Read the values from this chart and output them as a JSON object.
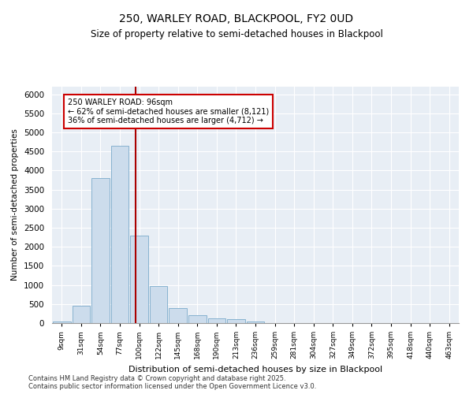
{
  "title1": "250, WARLEY ROAD, BLACKPOOL, FY2 0UD",
  "title2": "Size of property relative to semi-detached houses in Blackpool",
  "xlabel": "Distribution of semi-detached houses by size in Blackpool",
  "ylabel": "Number of semi-detached properties",
  "footer1": "Contains HM Land Registry data © Crown copyright and database right 2025.",
  "footer2": "Contains public sector information licensed under the Open Government Licence v3.0.",
  "annotation_title": "250 WARLEY ROAD: 96sqm",
  "annotation_line1": "← 62% of semi-detached houses are smaller (8,121)",
  "annotation_line2": "36% of semi-detached houses are larger (4,712) →",
  "property_size": 96,
  "bar_color": "#ccdcec",
  "bar_edge_color": "#7aaaca",
  "vline_color": "#aa0000",
  "annotation_box_color": "#cc0000",
  "background_color": "#e8eef5",
  "categories": [
    "9sqm",
    "31sqm",
    "54sqm",
    "77sqm",
    "100sqm",
    "122sqm",
    "145sqm",
    "168sqm",
    "190sqm",
    "213sqm",
    "236sqm",
    "259sqm",
    "281sqm",
    "304sqm",
    "327sqm",
    "349sqm",
    "372sqm",
    "395sqm",
    "418sqm",
    "440sqm",
    "463sqm"
  ],
  "values": [
    50,
    450,
    3800,
    4650,
    2300,
    980,
    400,
    200,
    120,
    100,
    40,
    10,
    5,
    2,
    1,
    1,
    0,
    0,
    0,
    0,
    0
  ],
  "ylim": [
    0,
    6200
  ],
  "yticks": [
    0,
    500,
    1000,
    1500,
    2000,
    2500,
    3000,
    3500,
    4000,
    4500,
    5000,
    5500,
    6000
  ]
}
